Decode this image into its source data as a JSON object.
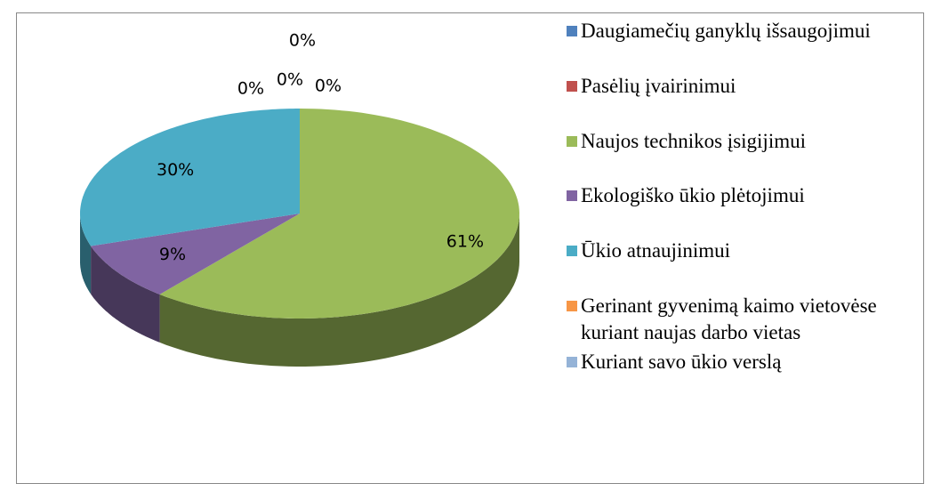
{
  "chart_data": {
    "type": "pie",
    "categories": [
      "Daugiamečių ganyklų išsaugojimui",
      "Pasėlių įvairinimui",
      "Naujos technikos įsigijimui",
      "Ekologiško ūkio plėtojimui",
      "Ūkio atnaujinimui",
      "Gerinant gyvenimą kaimo vietovėse kuriant naujas darbo vietas",
      "Kuriant savo ūkio verslą"
    ],
    "values": [
      0,
      0,
      61,
      9,
      30,
      0,
      0
    ],
    "value_labels": [
      "0%",
      "0%",
      "61%",
      "9%",
      "30%",
      "0%",
      "0%"
    ],
    "colors": [
      "#4f81bd",
      "#c0504d",
      "#9bbb59",
      "#8064a2",
      "#4bacc6",
      "#f79646",
      "#95b3d7"
    ],
    "legend": "right"
  }
}
